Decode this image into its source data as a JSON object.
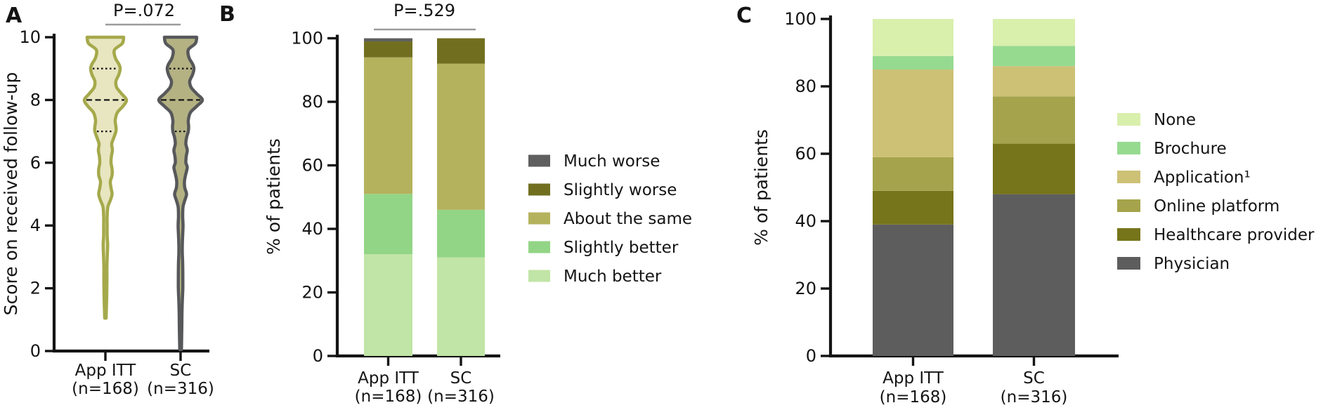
{
  "figure": {
    "background": "#ffffff",
    "panels": [
      {
        "label": "A"
      },
      {
        "label": "B"
      },
      {
        "label": "C"
      }
    ]
  },
  "chart_data": [
    {
      "panel": "A",
      "type": "violin",
      "p_value": "P=.072",
      "ylabel": "Score on received follow-up",
      "ylim": [
        0,
        10
      ],
      "yticks": [
        0,
        2,
        4,
        6,
        8,
        10
      ],
      "groups": [
        {
          "name": "App ITT",
          "n_label": "(n=168)",
          "median": 8,
          "q1": 7,
          "q3": 9,
          "min": 1,
          "max": 10,
          "stroke": "#a5a94b",
          "fill": "#e8e6c0",
          "profile": [
            [
              10,
              26
            ],
            [
              9.8,
              24
            ],
            [
              9.6,
              13
            ],
            [
              9.35,
              14
            ],
            [
              9.15,
              19
            ],
            [
              9.0,
              21
            ],
            [
              8.8,
              19
            ],
            [
              8.6,
              15
            ],
            [
              8.4,
              16
            ],
            [
              8.2,
              23
            ],
            [
              8.0,
              30
            ],
            [
              7.8,
              25
            ],
            [
              7.6,
              17
            ],
            [
              7.35,
              14
            ],
            [
              7.15,
              15
            ],
            [
              7.0,
              15
            ],
            [
              6.8,
              12
            ],
            [
              6.6,
              9
            ],
            [
              6.4,
              10
            ],
            [
              6.2,
              8.5
            ],
            [
              6.0,
              8
            ],
            [
              5.8,
              9.5
            ],
            [
              5.6,
              9.5
            ],
            [
              5.4,
              7
            ],
            [
              5.2,
              8
            ],
            [
              5.0,
              9.5
            ],
            [
              4.8,
              7
            ],
            [
              4.6,
              3.5
            ],
            [
              4.3,
              2.5
            ],
            [
              4.0,
              2.5
            ],
            [
              3.7,
              2.5
            ],
            [
              3.4,
              3.2
            ],
            [
              3.1,
              2.8
            ],
            [
              2.7,
              2.2
            ],
            [
              2.3,
              2.2
            ],
            [
              1.9,
              2
            ],
            [
              1.5,
              1.6
            ],
            [
              1.05,
              1
            ]
          ]
        },
        {
          "name": "SC",
          "n_label": "(n=316)",
          "median": 8,
          "q1": 7,
          "q3": 9,
          "min": 0,
          "max": 10,
          "stroke": "#57585a",
          "fill": "#b4b283",
          "profile": [
            [
              10,
              23
            ],
            [
              9.8,
              21
            ],
            [
              9.6,
              11
            ],
            [
              9.35,
              12
            ],
            [
              9.15,
              17
            ],
            [
              9.0,
              19
            ],
            [
              8.8,
              17
            ],
            [
              8.6,
              13
            ],
            [
              8.4,
              15
            ],
            [
              8.2,
              23
            ],
            [
              8.0,
              31
            ],
            [
              7.8,
              23
            ],
            [
              7.6,
              14
            ],
            [
              7.35,
              11
            ],
            [
              7.15,
              11.5
            ],
            [
              7.0,
              11
            ],
            [
              6.8,
              8.5
            ],
            [
              6.6,
              7.5
            ],
            [
              6.4,
              9.5
            ],
            [
              6.2,
              8
            ],
            [
              6.0,
              7.5
            ],
            [
              5.85,
              9.5
            ],
            [
              5.6,
              7
            ],
            [
              5.4,
              5.5
            ],
            [
              5.2,
              6
            ],
            [
              5.0,
              8.5
            ],
            [
              4.8,
              6
            ],
            [
              4.6,
              3.5
            ],
            [
              4.3,
              3
            ],
            [
              4.0,
              3.5
            ],
            [
              3.7,
              3
            ],
            [
              3.4,
              2.5
            ],
            [
              3.1,
              2.5
            ],
            [
              2.8,
              3
            ],
            [
              2.4,
              3.2
            ],
            [
              2.0,
              3.2
            ],
            [
              1.6,
              2.5
            ],
            [
              1.2,
              2
            ],
            [
              0.8,
              1.8
            ],
            [
              0.4,
              1.5
            ],
            [
              0.05,
              1.2
            ]
          ]
        }
      ]
    },
    {
      "panel": "B",
      "type": "stacked_bar",
      "p_value": "P=.529",
      "ylabel": "% of patients",
      "ylim": [
        0,
        100
      ],
      "yticks": [
        0,
        20,
        40,
        60,
        80,
        100
      ],
      "categories": [
        "App ITT",
        "SC"
      ],
      "category_sublabels": [
        "(n=168)",
        "(n=316)"
      ],
      "series": [
        {
          "name": "Much better",
          "color": "#c1e5a6",
          "values": [
            32,
            31
          ]
        },
        {
          "name": "Slightly better",
          "color": "#93d586",
          "values": [
            19,
            15
          ]
        },
        {
          "name": "About the same",
          "color": "#b5b25e",
          "values": [
            43,
            46
          ]
        },
        {
          "name": "Slightly worse",
          "color": "#716f1f",
          "values": [
            5,
            8
          ]
        },
        {
          "name": "Much worse",
          "color": "#5f5f5f",
          "values": [
            1,
            0
          ]
        }
      ],
      "legend": [
        "Much worse",
        "Slightly worse",
        "About the same",
        "Slightly better",
        "Much better"
      ]
    },
    {
      "panel": "C",
      "type": "stacked_bar",
      "ylabel": "% of patients",
      "ylim": [
        0,
        100
      ],
      "yticks": [
        0,
        20,
        40,
        60,
        80,
        100
      ],
      "categories": [
        "App ITT",
        "SC"
      ],
      "category_sublabels": [
        "(n=168)",
        "(n=316)"
      ],
      "series": [
        {
          "name": "Physician",
          "color": "#5d5d5d",
          "values": [
            39,
            48
          ]
        },
        {
          "name": "Healthcare provider",
          "color": "#76751b",
          "values": [
            10,
            15
          ]
        },
        {
          "name": "Online platform",
          "color": "#a5a44c",
          "values": [
            10,
            14
          ]
        },
        {
          "name": "Application¹",
          "color": "#cdc175",
          "values": [
            26,
            9
          ]
        },
        {
          "name": "Brochure",
          "color": "#96da90",
          "values": [
            4,
            6
          ]
        },
        {
          "name": "None",
          "color": "#d9efac",
          "values": [
            11,
            8
          ]
        }
      ],
      "legend": [
        "None",
        "Brochure",
        "Application¹",
        "Online platform",
        "Healthcare provider",
        "Physician"
      ]
    }
  ]
}
